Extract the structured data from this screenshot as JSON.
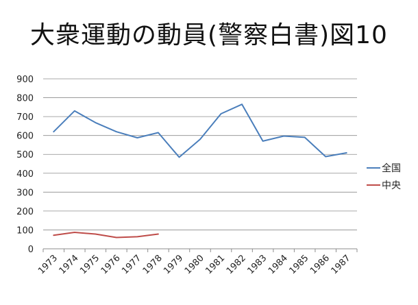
{
  "page": {
    "title": "大衆運動の動員(警察白書)図10"
  },
  "chart_data": {
    "type": "line",
    "title": "",
    "xlabel": "",
    "ylabel": "",
    "categories": [
      "1973",
      "1974",
      "1975",
      "1976",
      "1977",
      "1978",
      "1979",
      "1980",
      "1981",
      "1982",
      "1983",
      "1984",
      "1985",
      "1986",
      "1987"
    ],
    "ylim": [
      0,
      900
    ],
    "yticks": [
      0,
      100,
      200,
      300,
      400,
      500,
      600,
      700,
      800,
      900
    ],
    "grid": true,
    "legend_position": "right",
    "series": [
      {
        "name": "全国",
        "color": "#4a7ebb",
        "values": [
          620,
          730,
          668,
          620,
          588,
          615,
          485,
          580,
          715,
          765,
          570,
          597,
          590,
          488,
          508
        ]
      },
      {
        "name": "中央",
        "color": "#be4b48",
        "values": [
          72,
          87,
          78,
          60,
          64,
          78,
          null,
          null,
          null,
          null,
          null,
          null,
          null,
          null,
          null
        ]
      }
    ]
  }
}
